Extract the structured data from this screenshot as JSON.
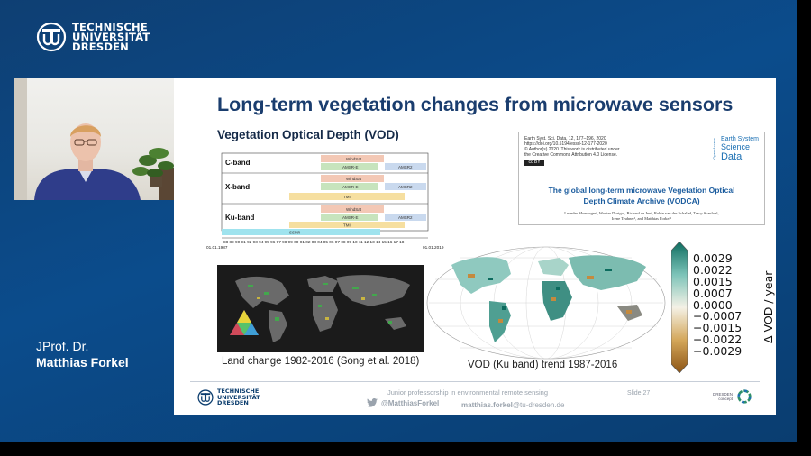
{
  "brand": {
    "university_lines": [
      "TECHNISCHE",
      "UNIVERSITÄT",
      "DRESDEN"
    ]
  },
  "speaker": {
    "role": "JProf. Dr.",
    "name": "Matthias Forkel"
  },
  "slide": {
    "title": "Long-term vegetation changes from microwave sensors",
    "subtitle": "Vegetation Optical Depth (VOD)",
    "sensor_chart": {
      "bands": [
        "C-band",
        "X-band",
        "Ku-band"
      ],
      "sensors": [
        "WindSat",
        "AMSR-E",
        "AMSR2",
        "TMI",
        "SSM/I"
      ],
      "year_ticks": "88 89 90 91 92 93 94 95 96 97 98 99 00 01 02 03 04 05 06 07 08 09 10 11 12 13 14 15 16 17 18",
      "start_label": "01.01.1987",
      "end_label": "01.01.2019"
    },
    "paper": {
      "journal_ref": "Earth Syst. Sci. Data, 12, 177–196, 2020",
      "doi": "https://doi.org/10.5194/essd-12-177-2020",
      "copyright_1": "© Author(s) 2020. This work is distributed under",
      "copyright_2": "the Creative Commons Attribution 4.0 License.",
      "cc_badge": "cc BY",
      "open_access": "Open Access",
      "journal_l1": "Earth System",
      "journal_l2": "Science",
      "journal_l3": "Data",
      "title_1": "The global long-term microwave Vegetation Optical",
      "title_2": "Depth Climate Archive (VODCA)",
      "authors_1": "Leander Moesinger¹, Wouter Dorigo¹, Richard de Jeu², Robin van der Schalie², Tracy Scanlon¹,",
      "authors_2": "Irene Teubner¹, and Matthias Forkel¹"
    },
    "land_caption": "Land change 1982-2016 (Song et al. 2018)",
    "vod_caption": "VOD (Ku band) trend 1987-2016",
    "colorbar": {
      "ticks": [
        "0.0029",
        "0.0022",
        "0.0015",
        "0.0007",
        "0.0000",
        "−0.0007",
        "−0.0015",
        "−0.0022",
        "−0.0029"
      ],
      "label": "Δ VOD / year",
      "colors": [
        "#0c6b5e",
        "#3a9a8c",
        "#7cc3b8",
        "#c6e6e0",
        "#f4f1e6",
        "#e9d3a2",
        "#d4a75a",
        "#b87a2a",
        "#8b5314"
      ]
    },
    "footer": {
      "logo_lines": [
        "TECHNISCHE",
        "UNIVERSITÄT",
        "DRESDEN"
      ],
      "tagline": "Junior professorship in environmental remote sensing",
      "twitter": "@MatthiasForkel",
      "email_user": "matthias.forkel",
      "email_domain": "@tu-dresden.de",
      "slide_no": "Slide 27",
      "dd_line1": "DRESDEN",
      "dd_line2": "concept"
    }
  }
}
